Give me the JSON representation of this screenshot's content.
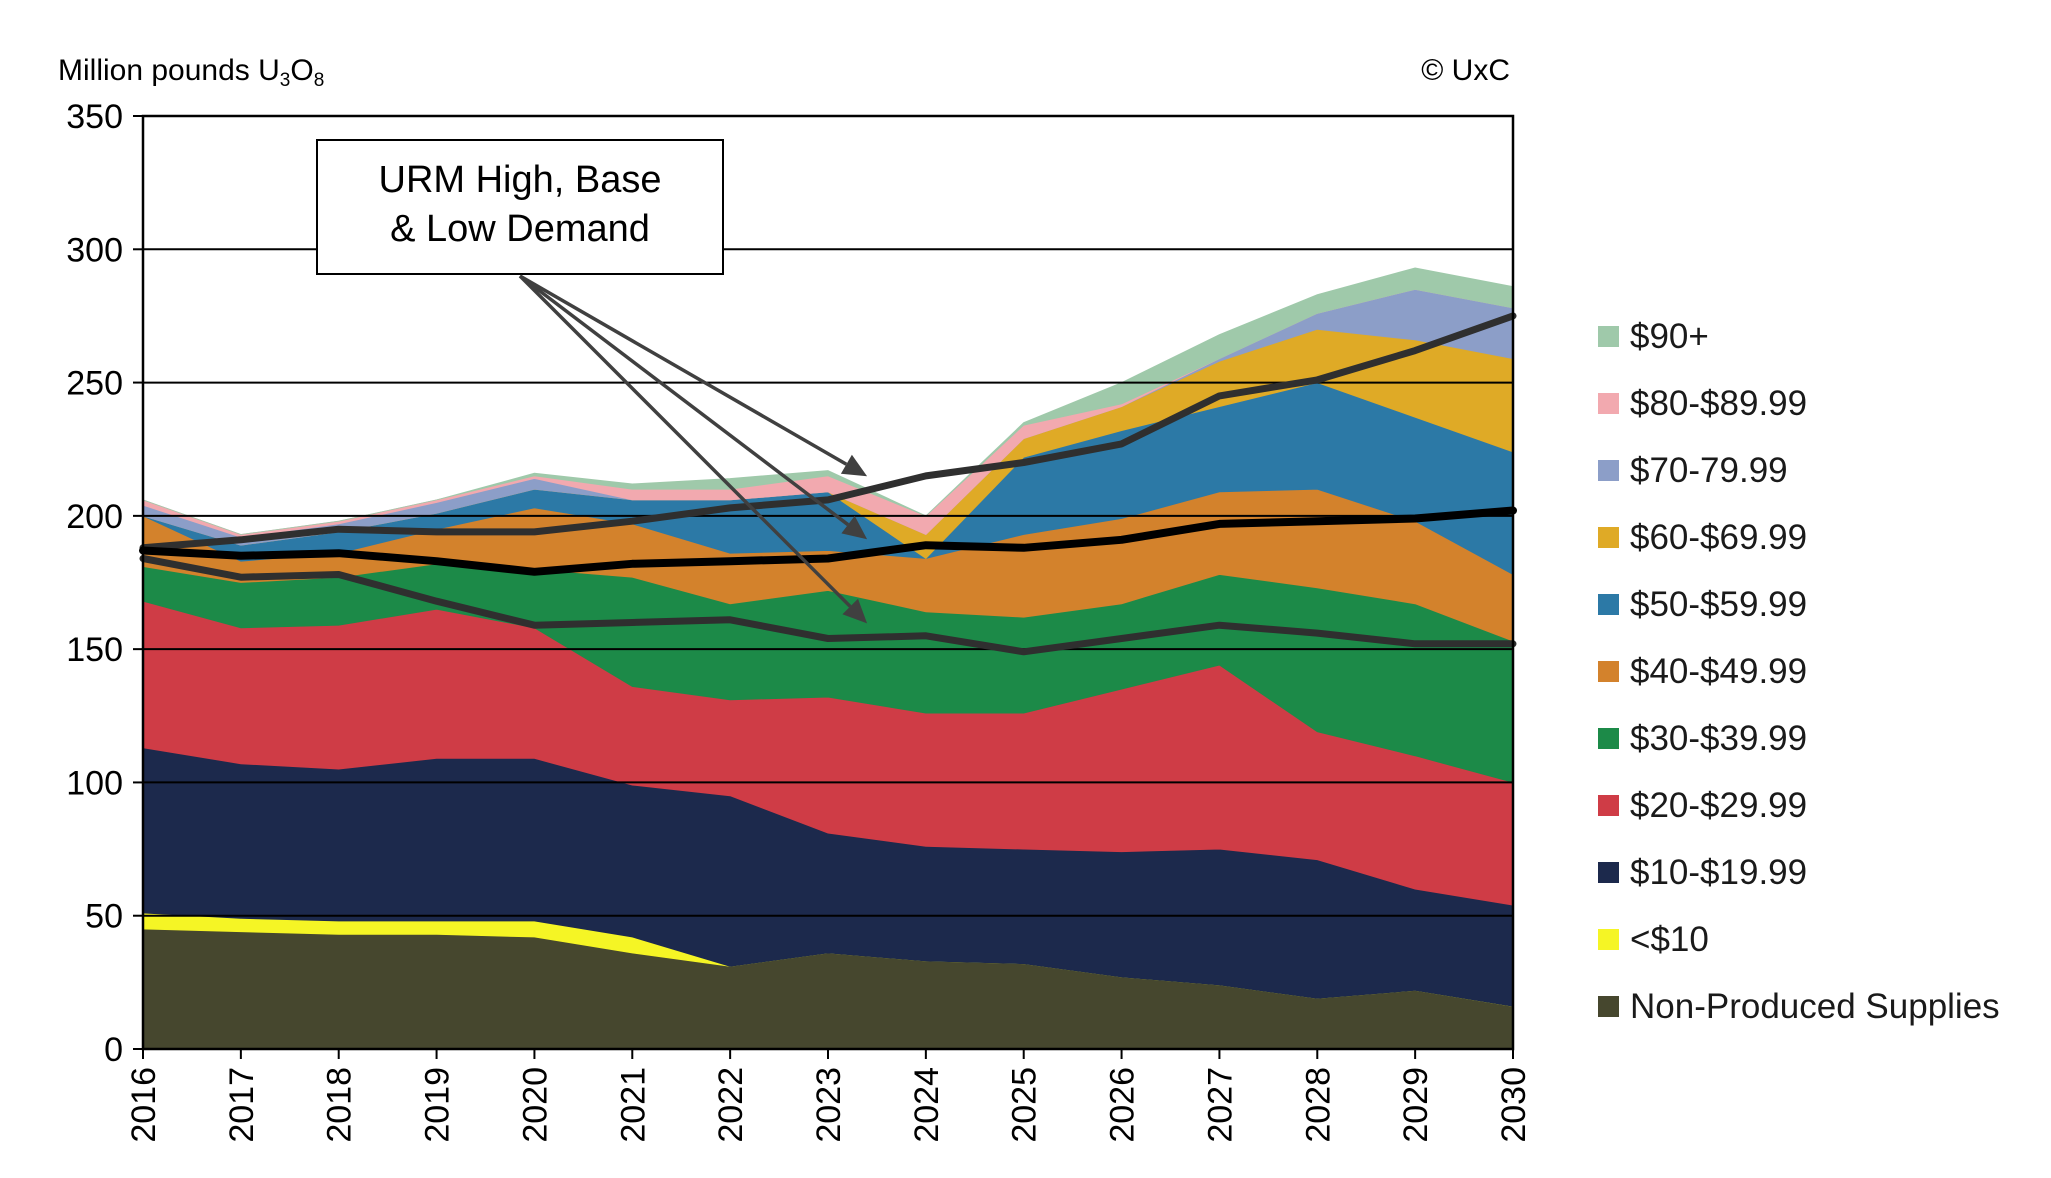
{
  "chart_data": {
    "type": "area",
    "stacked": true,
    "ylabel_main": "Million  pounds U",
    "ylabel_sub1": "3",
    "ylabel_mid": "O",
    "ylabel_sub2": "8",
    "copyright": "© UxC",
    "annotation_lines": [
      "URM High, Base",
      "& Low Demand"
    ],
    "ylim": [
      0,
      350
    ],
    "yticks": [
      0,
      50,
      100,
      150,
      200,
      250,
      300,
      350
    ],
    "grid": "horizontal",
    "legend_position": "right",
    "x": [
      "2016",
      "2017",
      "2018",
      "2019",
      "2020",
      "2021",
      "2022",
      "2023",
      "2024",
      "2025",
      "2026",
      "2027",
      "2028",
      "2029",
      "2030"
    ],
    "series": [
      {
        "name": "Non-Produced Supplies",
        "color": "#46472e",
        "values": [
          45,
          44,
          43,
          43,
          42,
          36,
          31,
          36,
          33,
          32,
          27,
          24,
          19,
          22,
          16
        ]
      },
      {
        "name": "<$10",
        "color": "#f5f525",
        "values": [
          6,
          5,
          5,
          5,
          6,
          6,
          0,
          0,
          0,
          0,
          0,
          0,
          0,
          0,
          0
        ]
      },
      {
        "name": "$10-$19.99",
        "color": "#1c294c",
        "values": [
          62,
          58,
          57,
          61,
          61,
          57,
          64,
          45,
          43,
          43,
          47,
          51,
          52,
          38,
          38
        ]
      },
      {
        "name": "$20-$29.99",
        "color": "#cf3c46",
        "values": [
          55,
          51,
          54,
          56,
          49,
          37,
          36,
          51,
          50,
          51,
          61,
          69,
          48,
          50,
          46
        ]
      },
      {
        "name": "$30-$39.99",
        "color": "#1c8a48",
        "values": [
          13,
          17,
          18,
          17,
          22,
          41,
          36,
          40,
          38,
          36,
          32,
          34,
          54,
          57,
          53
        ]
      },
      {
        "name": "$40-$49.99",
        "color": "#d3822c",
        "values": [
          19,
          8,
          9,
          13,
          23,
          20,
          19,
          15,
          20,
          31,
          32,
          31,
          37,
          31,
          25
        ]
      },
      {
        "name": "$50-$59.99",
        "color": "#2c79a6",
        "values": [
          0,
          6,
          8,
          6,
          7,
          9,
          20,
          22,
          0,
          29,
          33,
          32,
          40,
          39,
          46
        ]
      },
      {
        "name": "$60-$69.99",
        "color": "#dfaa26",
        "values": [
          0,
          0,
          0,
          0,
          0,
          0,
          0,
          0,
          9,
          7,
          9,
          17,
          20,
          29,
          35
        ]
      },
      {
        "name": "$70-79.99",
        "color": "#8c9ec8",
        "values": [
          4,
          3,
          3,
          4,
          4,
          0,
          0,
          0,
          0,
          0,
          0,
          1,
          6,
          19,
          19
        ]
      },
      {
        "name": "$80-$89.99",
        "color": "#f2a9af",
        "values": [
          2,
          1,
          1,
          1,
          1,
          4,
          4,
          6,
          7,
          5,
          1,
          0,
          0,
          0,
          0
        ]
      },
      {
        "name": "$90+",
        "color": "#9fc9aa",
        "values": [
          0,
          0,
          0,
          0,
          1,
          2,
          4,
          2,
          0,
          1,
          8,
          9,
          7,
          8,
          8
        ]
      }
    ],
    "demand_lines": [
      {
        "name": "URM High Demand",
        "color": "#2f2f2f",
        "values": [
          188,
          191,
          195,
          194,
          194,
          198,
          203,
          206,
          215,
          220,
          227,
          245,
          251,
          262,
          275
        ]
      },
      {
        "name": "URM Base Demand",
        "color": "#000000",
        "values": [
          187,
          185,
          186,
          183,
          179,
          182,
          183,
          184,
          189,
          188,
          191,
          197,
          198,
          199,
          202
        ]
      },
      {
        "name": "URM Low Demand",
        "color": "#2f2f2f",
        "values": [
          184,
          177,
          178,
          168,
          159,
          160,
          161,
          154,
          155,
          149,
          154,
          159,
          156,
          152,
          152
        ]
      }
    ]
  }
}
